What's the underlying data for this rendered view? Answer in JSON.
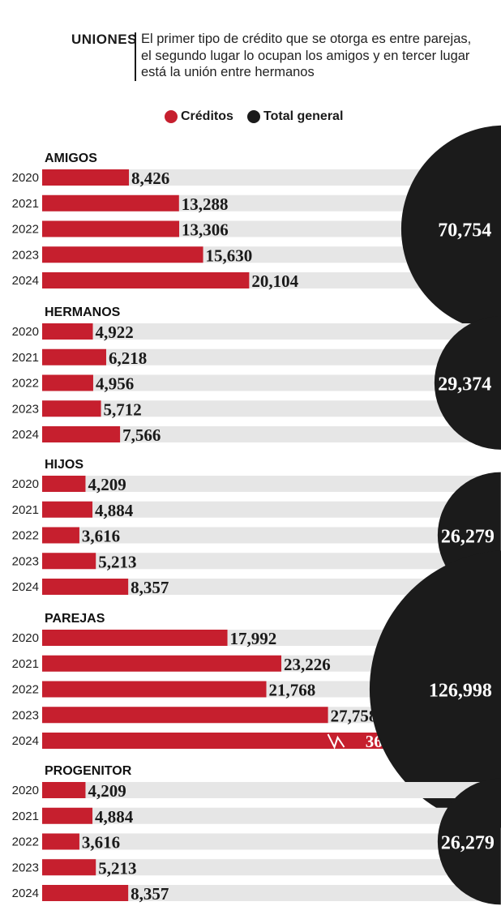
{
  "header": {
    "kicker": "UNIONES",
    "subtitle": "El primer tipo de crédito que se otorga es entre parejas, el segundo lugar lo ocupan los amigos y en tercer lugar está la unión entre hermanos"
  },
  "legend": {
    "creditos": "Créditos",
    "total": "Total general"
  },
  "colors": {
    "bar": "#c61f2e",
    "track": "#e6e6e6",
    "circle": "#1b1b1b"
  },
  "chart_data": {
    "type": "bar",
    "orientation": "horizontal",
    "categories": [
      "2020",
      "2021",
      "2022",
      "2023",
      "2024"
    ],
    "series_name": "Créditos",
    "total_name": "Total general",
    "xlim": [
      0,
      37000
    ],
    "groups": [
      {
        "name": "AMIGOS",
        "values": [
          8426,
          13288,
          13306,
          15630,
          20104
        ],
        "labels": [
          "8,426",
          "13,288",
          "13,306",
          "15,630",
          "20,104"
        ],
        "total": 70754,
        "total_label": "70,754"
      },
      {
        "name": "HERMANOS",
        "values": [
          4922,
          6218,
          4956,
          5712,
          7566
        ],
        "labels": [
          "4,922",
          "6,218",
          "4,956",
          "5,712",
          "7,566"
        ],
        "total": 29374,
        "total_label": "29,374"
      },
      {
        "name": "HIJOS",
        "values": [
          4209,
          4884,
          3616,
          5213,
          8357
        ],
        "labels": [
          "4,209",
          "4,884",
          "3,616",
          "5,213",
          "8,357"
        ],
        "total": 26279,
        "total_label": "26,279"
      },
      {
        "name": "PAREJAS",
        "values": [
          17992,
          23226,
          21768,
          27758,
          36254
        ],
        "labels": [
          "17,992",
          "23,226",
          "21,768",
          "27,758",
          "36,254"
        ],
        "total": 126998,
        "total_label": "126,998",
        "break_mark_on": "2024"
      },
      {
        "name": "PROGENITOR",
        "values": [
          4209,
          4884,
          3616,
          5213,
          8357
        ],
        "labels": [
          "4,209",
          "4,884",
          "3,616",
          "5,213",
          "8,357"
        ],
        "total": 26279,
        "total_label": "26,279"
      }
    ]
  }
}
